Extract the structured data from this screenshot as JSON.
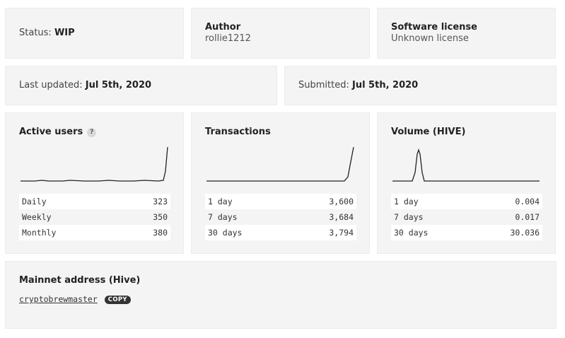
{
  "status": {
    "label": "Status:",
    "value": "WIP"
  },
  "author": {
    "title": "Author",
    "value": "rollie1212"
  },
  "license": {
    "title": "Software license",
    "value": "Unknown license"
  },
  "last_updated": {
    "label": "Last updated:",
    "value": "Jul 5th, 2020"
  },
  "submitted": {
    "label": "Submitted:",
    "value": "Jul 5th, 2020"
  },
  "active_users": {
    "title": "Active users",
    "help": "?",
    "rows": [
      {
        "label": "Daily",
        "value": "323"
      },
      {
        "label": "Weekly",
        "value": "350"
      },
      {
        "label": "Monthly",
        "value": "380"
      }
    ]
  },
  "transactions": {
    "title": "Transactions",
    "rows": [
      {
        "label": "1 day",
        "value": "3,600"
      },
      {
        "label": "7 days",
        "value": "3,684"
      },
      {
        "label": "30 days",
        "value": "3,794"
      }
    ]
  },
  "volume": {
    "title": "Volume (HIVE)",
    "rows": [
      {
        "label": "1 day",
        "value": "0.004"
      },
      {
        "label": "7 days",
        "value": "0.017"
      },
      {
        "label": "30 days",
        "value": "30.036"
      }
    ]
  },
  "mainnet": {
    "title": "Mainnet address (Hive)",
    "address": "cryptobrewmaster",
    "copy_label": "COPY"
  },
  "colors": {
    "card_bg": "#f4f4f4",
    "line": "#222222",
    "badge": "#333333"
  }
}
